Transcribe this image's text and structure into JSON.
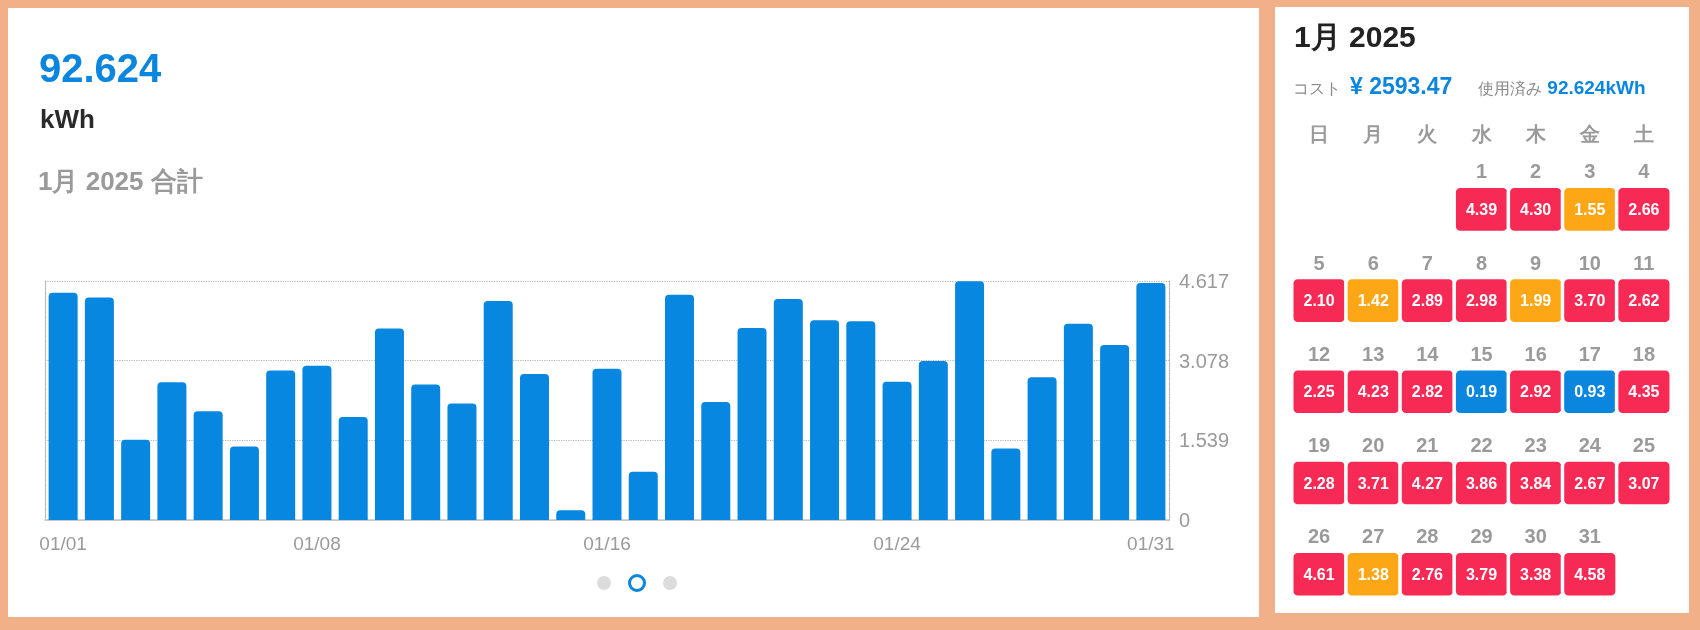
{
  "chart_data": [
    {
      "type": "bar",
      "title": "92.624",
      "subtitle": "kWh",
      "annotations": [
        "1月 2025 合計"
      ],
      "categories": [
        "01/01",
        null,
        null,
        null,
        null,
        null,
        null,
        "01/08",
        null,
        null,
        null,
        null,
        null,
        null,
        null,
        "01/16",
        null,
        null,
        null,
        null,
        null,
        null,
        null,
        "01/24",
        null,
        null,
        null,
        null,
        null,
        null,
        "01/31"
      ],
      "values": [
        4.39,
        4.3,
        1.55,
        2.66,
        2.1,
        1.42,
        2.89,
        2.98,
        1.99,
        3.7,
        2.62,
        2.25,
        4.23,
        2.82,
        0.19,
        2.92,
        0.93,
        4.35,
        2.28,
        3.71,
        4.27,
        3.86,
        3.84,
        2.67,
        3.07,
        4.61,
        1.38,
        2.76,
        3.79,
        3.38,
        4.58
      ],
      "color": "#0787df",
      "ylim": [
        0,
        4.617
      ],
      "yticks": [
        0,
        1.539,
        3.078,
        4.617
      ],
      "grid": "y"
    },
    {
      "type": "heatmap",
      "title": "1月 2025",
      "annotations": [
        "コスト",
        "¥ 2593.47",
        "使用済み",
        "92.624kWh",
        "1",
        "2",
        "3",
        "4",
        "5",
        "6",
        "7",
        "8",
        "9",
        "10",
        "11",
        "12",
        "13",
        "14",
        "15",
        "16",
        "17",
        "18",
        "19",
        "20",
        "21",
        "22",
        "23",
        "24",
        "25",
        "26",
        "27",
        "28",
        "29",
        "30",
        "31"
      ],
      "categories": [
        "日",
        "月",
        "火",
        "水",
        "木",
        "金",
        "土"
      ],
      "y_categories": [
        null,
        null,
        null,
        null,
        null
      ],
      "cells": [
        [
          null,
          null,
          null,
          4.39,
          4.3,
          1.55,
          2.66
        ],
        [
          2.1,
          1.42,
          2.89,
          2.98,
          1.99,
          3.7,
          2.62
        ],
        [
          2.25,
          4.23,
          2.82,
          0.19,
          2.92,
          0.93,
          4.35
        ],
        [
          2.28,
          3.71,
          4.27,
          3.86,
          3.84,
          2.67,
          3.07
        ],
        [
          4.61,
          1.38,
          2.76,
          3.79,
          3.38,
          4.58,
          null
        ]
      ],
      "cell_labels": [
        [
          null,
          null,
          null,
          "4.39",
          "4.30",
          "1.55",
          "2.66"
        ],
        [
          "2.10",
          "1.42",
          "2.89",
          "2.98",
          "1.99",
          "3.70",
          "2.62"
        ],
        [
          "2.25",
          "4.23",
          "2.82",
          "0.19",
          "2.92",
          "0.93",
          "4.35"
        ],
        [
          "2.28",
          "3.71",
          "4.27",
          "3.86",
          "3.84",
          "2.67",
          "3.07"
        ],
        [
          "4.61",
          "1.38",
          "2.76",
          "3.79",
          "3.38",
          "4.58",
          null
        ]
      ],
      "colors": [
        [
          null,
          null,
          null,
          "#f62a55",
          "#f62a55",
          "#fda716",
          "#f62a55"
        ],
        [
          "#f62a55",
          "#fda716",
          "#f62a55",
          "#f62a55",
          "#fda716",
          "#f62a55",
          "#f62a55"
        ],
        [
          "#f62a55",
          "#f62a55",
          "#f62a55",
          "#0a86de",
          "#f62a55",
          "#0a86de",
          "#f62a55"
        ],
        [
          "#f62a55",
          "#f62a55",
          "#f62a55",
          "#f62a55",
          "#f62a55",
          "#f62a55",
          "#f62a55"
        ],
        [
          "#f62a55",
          "#fda716",
          "#f62a55",
          "#f62a55",
          "#f62a55",
          "#f62a55",
          null
        ]
      ]
    }
  ]
}
